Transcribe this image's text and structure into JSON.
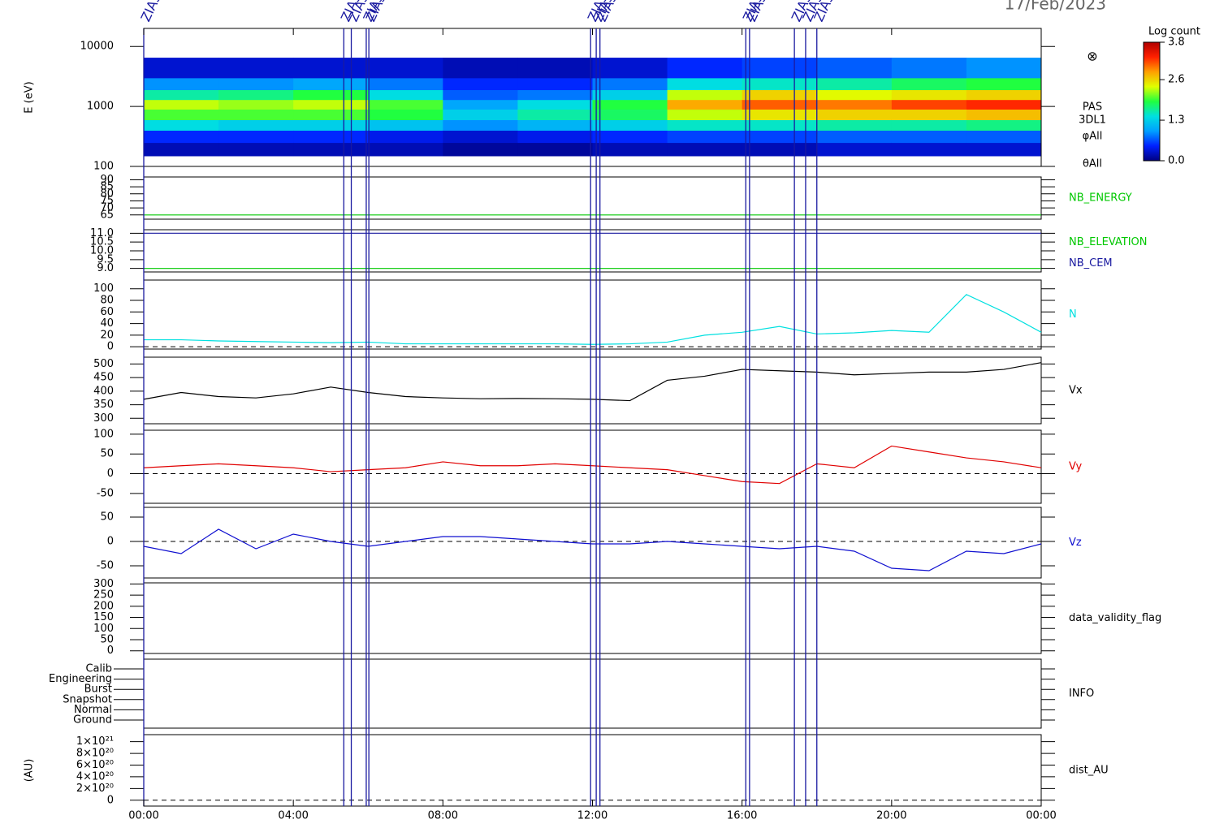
{
  "date": "17/Feb/2023",
  "x_axis": {
    "xlim": [
      0,
      24
    ],
    "xticks": [
      {
        "value": 0,
        "label": "00:00"
      },
      {
        "value": 4,
        "label": "04:00"
      },
      {
        "value": 8,
        "label": "08:00"
      },
      {
        "value": 12,
        "label": "12:00"
      },
      {
        "value": 16,
        "label": "16:00"
      },
      {
        "value": 20,
        "label": "20:00"
      },
      {
        "value": 24,
        "label": "00:00"
      }
    ]
  },
  "events": {
    "label": "ZIAS",
    "color": "#1a1aa0",
    "times": [
      0.0,
      5.35,
      5.55,
      5.95,
      6.02,
      11.95,
      12.1,
      12.2,
      16.1,
      16.2,
      17.4,
      17.7,
      18.0
    ]
  },
  "chart_data": [
    {
      "type": "heatmap",
      "ylabel": "E (eV)",
      "log": true,
      "ylim": [
        100,
        20000
      ],
      "yticks": [
        100,
        1000,
        10000
      ],
      "symbol": "⊗",
      "side_labels": [
        "PAS",
        "3DL1",
        "φAll",
        "θAll"
      ],
      "colorbar_title": "Log count",
      "zlim": [
        0,
        3.8
      ],
      "zticks": [
        {
          "value": 0,
          "label": "0.0"
        },
        1.3,
        2.6,
        3.8
      ],
      "colormap": [
        "#000080",
        "#0020ff",
        "#00a0ff",
        "#00e0e0",
        "#20ff40",
        "#e0ff00",
        "#ffa000",
        "#ff2000",
        "#b00000"
      ],
      "x_edges": [
        0,
        2,
        4,
        6,
        8,
        10,
        12,
        14,
        16,
        18,
        20,
        22,
        24
      ],
      "y_edges": [
        150,
        250,
        400,
        600,
        900,
        1300,
        1900,
        3000,
        6500
      ],
      "z": [
        [
          0.2,
          0.5,
          1.4,
          2.0,
          2.3,
          1.6,
          0.9,
          0.3
        ],
        [
          0.2,
          0.5,
          1.3,
          2.0,
          2.2,
          1.7,
          0.9,
          0.3
        ],
        [
          0.2,
          0.5,
          1.3,
          2.0,
          2.3,
          1.9,
          1.0,
          0.3
        ],
        [
          0.2,
          0.4,
          1.2,
          1.9,
          2.0,
          1.4,
          0.8,
          0.3
        ],
        [
          0.1,
          0.3,
          0.9,
          1.3,
          1.0,
          0.7,
          0.5,
          0.2
        ],
        [
          0.1,
          0.4,
          1.1,
          1.6,
          1.4,
          0.8,
          0.5,
          0.2
        ],
        [
          0.2,
          0.5,
          1.3,
          1.8,
          1.9,
          1.3,
          0.8,
          0.3
        ],
        [
          0.2,
          0.6,
          1.5,
          2.3,
          2.8,
          2.3,
          1.4,
          0.5
        ],
        [
          0.2,
          0.6,
          1.5,
          2.5,
          3.1,
          2.6,
          1.5,
          0.6
        ],
        [
          0.3,
          0.7,
          1.6,
          2.6,
          3.0,
          2.4,
          1.6,
          0.7
        ],
        [
          0.3,
          0.7,
          1.6,
          2.6,
          3.2,
          2.5,
          1.8,
          0.8
        ],
        [
          0.3,
          0.7,
          1.7,
          2.7,
          3.3,
          2.6,
          1.9,
          0.9
        ]
      ]
    },
    {
      "type": "line",
      "ylim": [
        62,
        92
      ],
      "yticks": [
        65,
        70,
        75,
        80,
        85,
        90
      ],
      "x": [
        0,
        24
      ],
      "series": [
        {
          "name": "NB_ENERGY",
          "color": "#00c800",
          "values": [
            65,
            65
          ]
        }
      ]
    },
    {
      "type": "line",
      "ylim": [
        8.8,
        11.2
      ],
      "yticks": [
        {
          "value": 9,
          "label": "9.0"
        },
        9.5,
        {
          "value": 10,
          "label": "10.0"
        },
        10.5,
        {
          "value": 11,
          "label": "11.0"
        }
      ],
      "x": [
        0,
        24
      ],
      "series": [
        {
          "name": "NB_ELEVATION",
          "color": "#00c800",
          "values": [
            9,
            9
          ]
        },
        {
          "name": "NB_CEM",
          "color": "#1a1aa0",
          "values": [
            11,
            11
          ]
        }
      ]
    },
    {
      "type": "line",
      "ylim": [
        -4,
        115
      ],
      "yticks": [
        0,
        20,
        40,
        60,
        80,
        100
      ],
      "zero_line": true,
      "x": [
        0,
        1,
        2,
        3,
        4,
        5,
        6,
        7,
        8,
        9,
        10,
        11,
        12,
        13,
        14,
        15,
        16,
        17,
        18,
        19,
        20,
        21,
        22,
        23,
        24
      ],
      "series": [
        {
          "name": "N",
          "color": "#00e0e0",
          "values": [
            12,
            12,
            10,
            9,
            8,
            7,
            8,
            5,
            5,
            5,
            5,
            5,
            4,
            5,
            8,
            20,
            25,
            35,
            22,
            24,
            28,
            25,
            90,
            60,
            25
          ]
        }
      ]
    },
    {
      "type": "line",
      "ylim": [
        280,
        525
      ],
      "yticks": [
        300,
        350,
        400,
        450,
        500
      ],
      "x": [
        0,
        1,
        2,
        3,
        4,
        5,
        6,
        7,
        8,
        9,
        10,
        11,
        12,
        13,
        14,
        15,
        16,
        17,
        18,
        19,
        20,
        21,
        22,
        23,
        24
      ],
      "series": [
        {
          "name": "Vx",
          "color": "#000000",
          "values": [
            370,
            395,
            380,
            375,
            390,
            415,
            395,
            380,
            375,
            372,
            373,
            372,
            370,
            365,
            440,
            455,
            480,
            475,
            470,
            460,
            465,
            470,
            470,
            480,
            505
          ]
        }
      ]
    },
    {
      "type": "line",
      "ylim": [
        -75,
        110
      ],
      "yticks": [
        -50,
        0,
        50,
        100
      ],
      "zero_line": true,
      "x": [
        0,
        1,
        2,
        3,
        4,
        5,
        6,
        7,
        8,
        9,
        10,
        11,
        12,
        13,
        14,
        15,
        16,
        17,
        18,
        19,
        20,
        21,
        22,
        23,
        24
      ],
      "series": [
        {
          "name": "Vy",
          "color": "#e00000",
          "values": [
            15,
            20,
            25,
            20,
            15,
            5,
            10,
            15,
            30,
            20,
            20,
            25,
            20,
            15,
            10,
            -5,
            -20,
            -25,
            25,
            15,
            70,
            55,
            40,
            30,
            15
          ]
        }
      ]
    },
    {
      "type": "line",
      "ylim": [
        -75,
        70
      ],
      "yticks": [
        -50,
        0,
        50
      ],
      "zero_line": true,
      "x": [
        0,
        1,
        2,
        3,
        4,
        5,
        6,
        7,
        8,
        9,
        10,
        11,
        12,
        13,
        14,
        15,
        16,
        17,
        18,
        19,
        20,
        21,
        22,
        23,
        24
      ],
      "series": [
        {
          "name": "Vz",
          "color": "#1010d0",
          "values": [
            -10,
            -25,
            25,
            -15,
            15,
            0,
            -10,
            0,
            10,
            10,
            5,
            0,
            -5,
            -5,
            0,
            -5,
            -10,
            -15,
            -10,
            -20,
            -55,
            -60,
            -20,
            -25,
            -5
          ]
        }
      ]
    },
    {
      "type": "empty",
      "label": "data_validity_flag",
      "ylim": [
        -12,
        305
      ],
      "yticks": [
        0,
        50,
        100,
        150,
        200,
        250,
        300
      ]
    },
    {
      "type": "empty",
      "label": "INFO",
      "categories": [
        "Calib",
        "Engineering",
        "Burst",
        "Snapshot",
        "Normal",
        "Ground"
      ]
    },
    {
      "type": "empty",
      "label": "dist_AU",
      "ylabel": "(AU)",
      "ylim": [
        -1e+20,
        1.12e+21
      ],
      "zero_line": true,
      "yticks": [
        0,
        {
          "value": 2e+20,
          "label": "2×10²⁰"
        },
        {
          "value": 4e+20,
          "label": "4×10²⁰"
        },
        {
          "value": 6e+20,
          "label": "6×10²⁰"
        },
        {
          "value": 8e+20,
          "label": "8×10²⁰"
        },
        {
          "value": 1e+21,
          "label": "1×10²¹"
        }
      ]
    }
  ]
}
